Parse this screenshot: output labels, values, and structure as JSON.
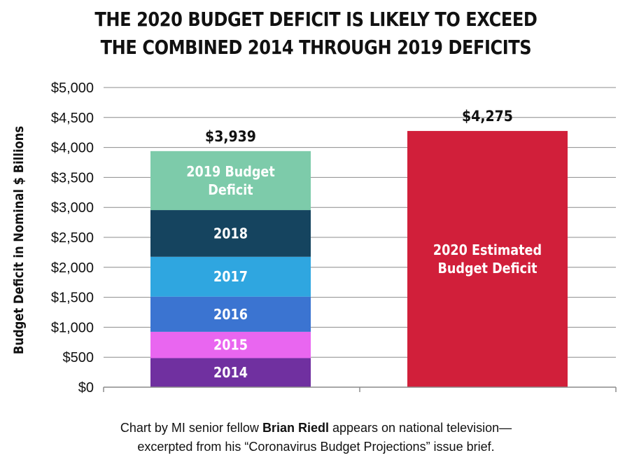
{
  "title_lines": [
    "THE 2020 BUDGET DEFICIT IS LIKELY TO EXCEED",
    "THE COMBINED 2014 THROUGH 2019 DEFICITS"
  ],
  "caption": {
    "line1_before": "Chart by MI senior fellow ",
    "line1_name": "Brian Riedl",
    "line1_after": " appears on national television—",
    "line2": "excerpted from his “Coronavirus Budget Projections” issue brief."
  },
  "chart_data": {
    "type": "bar",
    "stacked": true,
    "ylabel": "Budget Deficit in Nominal $ Billions",
    "ylim": [
      0,
      5000
    ],
    "yticks": [
      {
        "value": 0,
        "label": "$0"
      },
      {
        "value": 500,
        "label": "$500"
      },
      {
        "value": 1000,
        "label": "$1,000"
      },
      {
        "value": 1500,
        "label": "$1,500"
      },
      {
        "value": 2000,
        "label": "$2,000"
      },
      {
        "value": 2500,
        "label": "$2,500"
      },
      {
        "value": 3000,
        "label": "$3,000"
      },
      {
        "value": 3500,
        "label": "$3,500"
      },
      {
        "value": 4000,
        "label": "$4,000"
      },
      {
        "value": 4500,
        "label": "$4,500"
      },
      {
        "value": 5000,
        "label": "$5,000"
      }
    ],
    "grid": true,
    "bars": [
      {
        "total": 3939,
        "total_label": "$3,939",
        "segments": [
          {
            "label": [
              "2014"
            ],
            "value": 485,
            "color": "#7030a0"
          },
          {
            "label": [
              "2015"
            ],
            "value": 439,
            "color": "#e966f0"
          },
          {
            "label": [
              "2016"
            ],
            "value": 587,
            "color": "#3b74d1"
          },
          {
            "label": [
              "2017"
            ],
            "value": 665,
            "color": "#2fa6e0"
          },
          {
            "label": [
              "2018"
            ],
            "value": 779,
            "color": "#15445f"
          },
          {
            "label": [
              "2019 Budget",
              "Deficit"
            ],
            "value": 984,
            "color": "#7dcbaa"
          }
        ]
      },
      {
        "total": 4275,
        "total_label": "$4,275",
        "segments": [
          {
            "label": [
              "2020 Estimated",
              "Budget Deficit"
            ],
            "value": 4275,
            "color": "#d11f3a"
          }
        ]
      }
    ]
  }
}
